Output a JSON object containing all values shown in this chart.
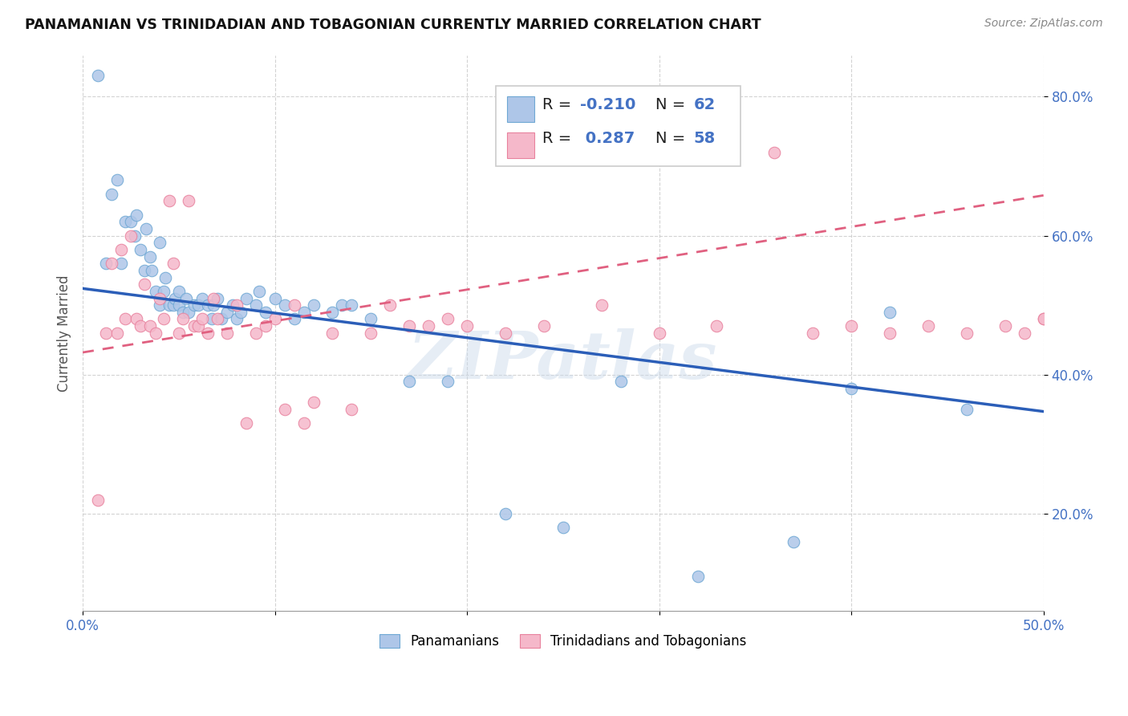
{
  "title": "PANAMANIAN VS TRINIDADIAN AND TOBAGONIAN CURRENTLY MARRIED CORRELATION CHART",
  "source": "Source: ZipAtlas.com",
  "ylabel": "Currently Married",
  "watermark": "ZIPatlas",
  "xlim": [
    0.0,
    0.5
  ],
  "ylim": [
    0.06,
    0.86
  ],
  "yticks": [
    0.2,
    0.4,
    0.6,
    0.8
  ],
  "ytick_labels": [
    "20.0%",
    "40.0%",
    "60.0%",
    "80.0%"
  ],
  "xticks": [
    0.0,
    0.1,
    0.2,
    0.3,
    0.4,
    0.5
  ],
  "xtick_labels": [
    "0.0%",
    "",
    "",
    "",
    "",
    "50.0%"
  ],
  "series1_color": "#aec6e8",
  "series1_edge": "#6fa8d4",
  "series2_color": "#f5b8ca",
  "series2_edge": "#e8829e",
  "line1_color": "#2b5eb8",
  "line2_color": "#e06080",
  "legend_box1": "#aec6e8",
  "legend_box2": "#f5b8ca",
  "footer_label1": "Panamanians",
  "footer_label2": "Trinidadians and Tobagonians",
  "pan_x": [
    0.008,
    0.012,
    0.015,
    0.018,
    0.02,
    0.022,
    0.025,
    0.027,
    0.028,
    0.03,
    0.032,
    0.033,
    0.035,
    0.036,
    0.038,
    0.04,
    0.04,
    0.042,
    0.043,
    0.045,
    0.047,
    0.048,
    0.05,
    0.05,
    0.052,
    0.054,
    0.055,
    0.058,
    0.06,
    0.062,
    0.065,
    0.067,
    0.068,
    0.07,
    0.072,
    0.075,
    0.078,
    0.08,
    0.082,
    0.085,
    0.09,
    0.092,
    0.095,
    0.1,
    0.105,
    0.11,
    0.115,
    0.12,
    0.13,
    0.135,
    0.14,
    0.15,
    0.17,
    0.19,
    0.22,
    0.25,
    0.28,
    0.32,
    0.37,
    0.4,
    0.42,
    0.46
  ],
  "pan_y": [
    0.83,
    0.56,
    0.66,
    0.68,
    0.56,
    0.62,
    0.62,
    0.6,
    0.63,
    0.58,
    0.55,
    0.61,
    0.57,
    0.55,
    0.52,
    0.5,
    0.59,
    0.52,
    0.54,
    0.5,
    0.5,
    0.51,
    0.52,
    0.5,
    0.49,
    0.51,
    0.49,
    0.5,
    0.5,
    0.51,
    0.5,
    0.48,
    0.5,
    0.51,
    0.48,
    0.49,
    0.5,
    0.48,
    0.49,
    0.51,
    0.5,
    0.52,
    0.49,
    0.51,
    0.5,
    0.48,
    0.49,
    0.5,
    0.49,
    0.5,
    0.5,
    0.48,
    0.39,
    0.39,
    0.2,
    0.18,
    0.39,
    0.11,
    0.16,
    0.38,
    0.49,
    0.35
  ],
  "tri_x": [
    0.008,
    0.012,
    0.015,
    0.018,
    0.02,
    0.022,
    0.025,
    0.028,
    0.03,
    0.032,
    0.035,
    0.038,
    0.04,
    0.042,
    0.045,
    0.047,
    0.05,
    0.052,
    0.055,
    0.058,
    0.06,
    0.062,
    0.065,
    0.068,
    0.07,
    0.075,
    0.08,
    0.085,
    0.09,
    0.095,
    0.1,
    0.105,
    0.11,
    0.115,
    0.12,
    0.13,
    0.14,
    0.15,
    0.16,
    0.17,
    0.18,
    0.19,
    0.2,
    0.22,
    0.24,
    0.27,
    0.3,
    0.33,
    0.36,
    0.38,
    0.4,
    0.42,
    0.44,
    0.46,
    0.48,
    0.49,
    0.5,
    0.5
  ],
  "tri_y": [
    0.22,
    0.46,
    0.56,
    0.46,
    0.58,
    0.48,
    0.6,
    0.48,
    0.47,
    0.53,
    0.47,
    0.46,
    0.51,
    0.48,
    0.65,
    0.56,
    0.46,
    0.48,
    0.65,
    0.47,
    0.47,
    0.48,
    0.46,
    0.51,
    0.48,
    0.46,
    0.5,
    0.33,
    0.46,
    0.47,
    0.48,
    0.35,
    0.5,
    0.33,
    0.36,
    0.46,
    0.35,
    0.46,
    0.5,
    0.47,
    0.47,
    0.48,
    0.47,
    0.46,
    0.47,
    0.5,
    0.46,
    0.47,
    0.72,
    0.46,
    0.47,
    0.46,
    0.47,
    0.46,
    0.47,
    0.46,
    0.48,
    0.48
  ],
  "blue_line_x0": 0.0,
  "blue_line_y0": 0.524,
  "blue_line_x1": 0.5,
  "blue_line_y1": 0.347,
  "pink_line_x0": 0.0,
  "pink_line_y0": 0.432,
  "pink_line_x1": 0.5,
  "pink_line_y1": 0.658
}
